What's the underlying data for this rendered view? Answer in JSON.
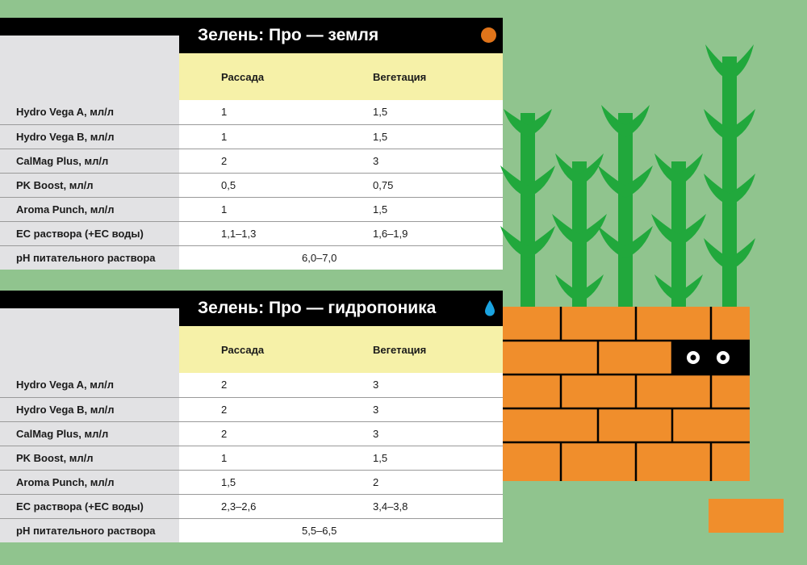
{
  "tables": [
    {
      "title": "Зелень: Про — земля",
      "icon": "orange-dot-icon",
      "header": {
        "label": "",
        "col1": "Рассада",
        "col2": "Вегетация"
      },
      "rows": [
        {
          "label": "Hydro Vega A, мл/л",
          "col1": "1",
          "col2": "1,5"
        },
        {
          "label": "Hydro Vega B, мл/л",
          "col1": "1",
          "col2": "1,5"
        },
        {
          "label": "CalMag Plus, мл/л",
          "col1": "2",
          "col2": "3"
        },
        {
          "label": "PK Boost, мл/л",
          "col1": "0,5",
          "col2": "0,75"
        },
        {
          "label": "Aroma Punch, мл/л",
          "col1": "1",
          "col2": "1,5"
        },
        {
          "label": "EC раствора (+EC воды)",
          "col1": "1,1–1,3",
          "col2": "1,6–1,9"
        }
      ],
      "ph": {
        "label": "pH питательного раствора",
        "value": "6,0–7,0"
      }
    },
    {
      "title": "Зелень: Про — гидропоника",
      "icon": "water-drop-icon",
      "header": {
        "label": "",
        "col1": "Рассада",
        "col2": "Вегетация"
      },
      "rows": [
        {
          "label": "Hydro Vega A, мл/л",
          "col1": "2",
          "col2": "3"
        },
        {
          "label": "Hydro Vega B, мл/л",
          "col1": "2",
          "col2": "3"
        },
        {
          "label": "CalMag Plus, мл/л",
          "col1": "2",
          "col2": "3"
        },
        {
          "label": "PK Boost, мл/л",
          "col1": "1",
          "col2": "1,5"
        },
        {
          "label": "Aroma Punch, мл/л",
          "col1": "1,5",
          "col2": "2"
        },
        {
          "label": "EC раствора (+EC воды)",
          "col1": "2,3–2,6",
          "col2": "3,4–3,8"
        }
      ],
      "ph": {
        "label": "pH питательного раствора",
        "value": "5,5–6,5"
      }
    }
  ],
  "colors": {
    "background": "#90c48e",
    "header_yellow": "#f6f1a8",
    "label_gray": "#e2e2e4",
    "brick_orange": "#f08e2c",
    "plant_green": "#21a83c",
    "drop_blue": "#1aa3e0",
    "dot_orange": "#e0741a"
  }
}
